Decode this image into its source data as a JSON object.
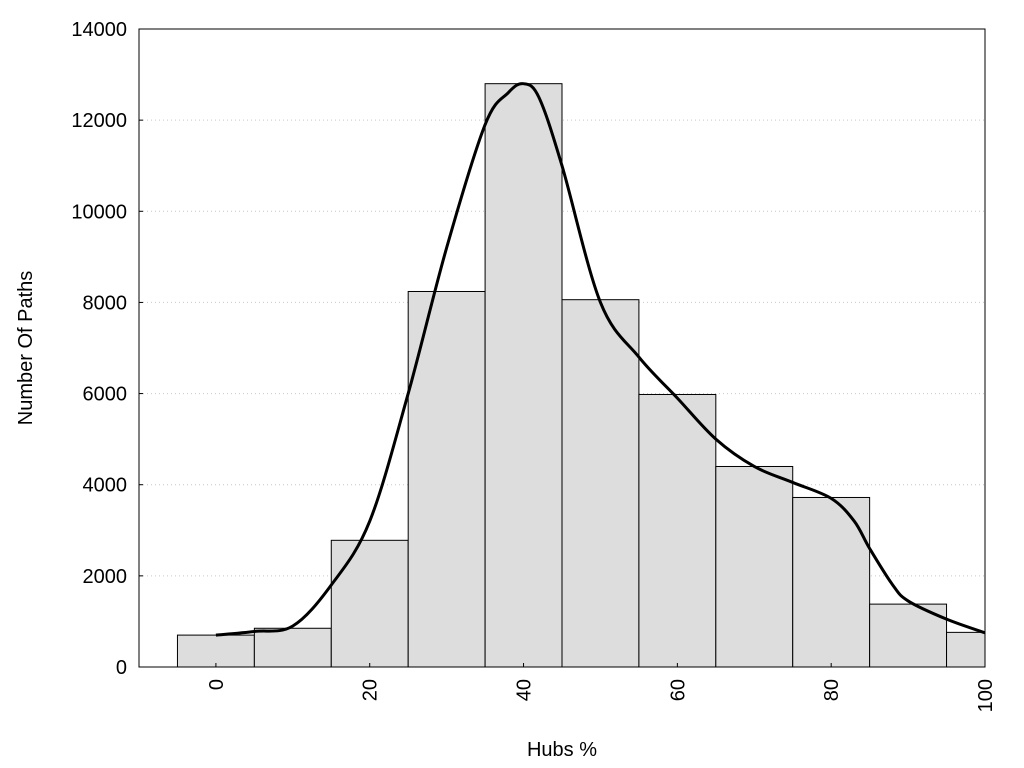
{
  "chart_data": {
    "type": "bar",
    "title": "",
    "xlabel": "Hubs %",
    "ylabel": "Number Of Paths",
    "xlim": [
      -10,
      100
    ],
    "ylim": [
      0,
      14000
    ],
    "x_ticks": [
      0,
      20,
      40,
      60,
      80,
      100
    ],
    "y_ticks": [
      0,
      2000,
      4000,
      6000,
      8000,
      10000,
      12000,
      14000
    ],
    "grid": "horizontal dotted",
    "bin_width": 10,
    "bin_centers": [
      0,
      10,
      20,
      30,
      40,
      50,
      60,
      70,
      80,
      90,
      100
    ],
    "values": [
      700,
      850,
      2780,
      8240,
      12800,
      8060,
      5980,
      4400,
      3720,
      1380,
      760
    ],
    "bar_color": "#dddddd",
    "curve": {
      "type": "density-line",
      "color": "#000000",
      "x": [
        0,
        5,
        10,
        15,
        20,
        25,
        30,
        35,
        38,
        40,
        42,
        45,
        50,
        55,
        60,
        65,
        70,
        75,
        80,
        83,
        85,
        88,
        90,
        95,
        100
      ],
      "y": [
        700,
        780,
        900,
        1800,
        3200,
        6000,
        9200,
        11900,
        12600,
        12800,
        12500,
        11000,
        8000,
        6800,
        5900,
        5000,
        4400,
        4050,
        3700,
        3200,
        2600,
        1800,
        1450,
        1050,
        750
      ]
    }
  }
}
